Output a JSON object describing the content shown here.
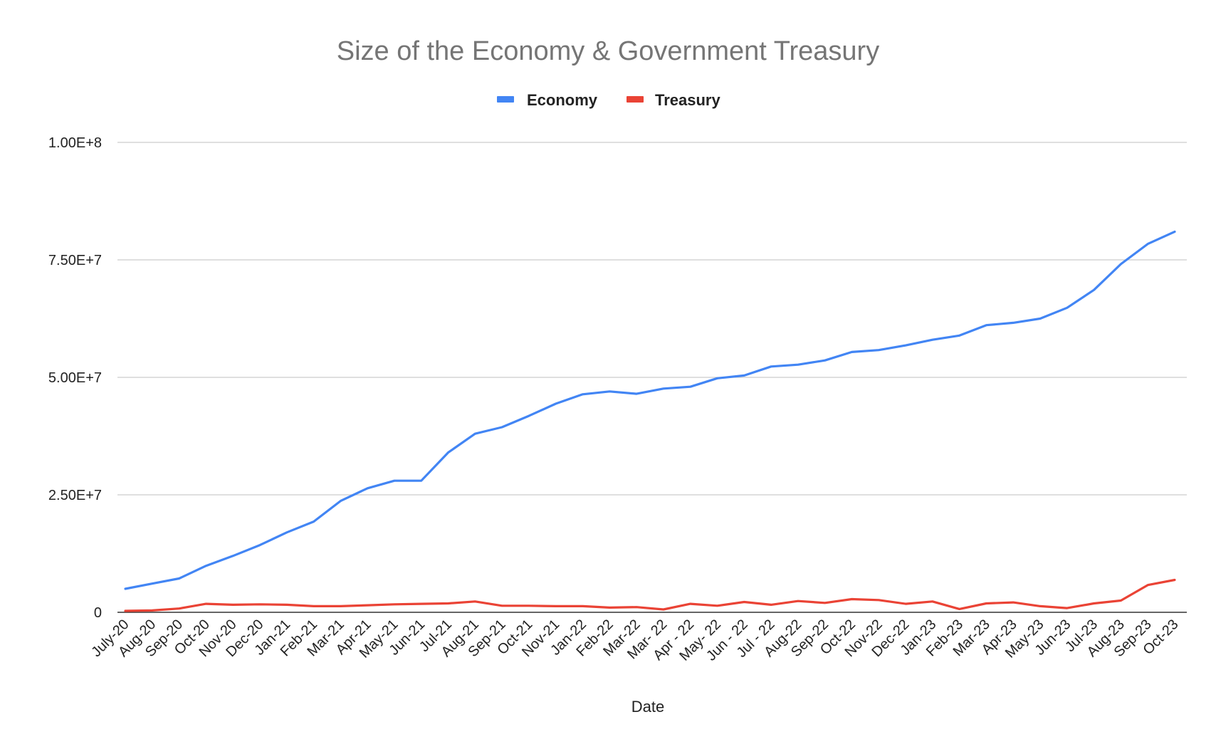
{
  "chart_data": {
    "type": "line",
    "title": "Size of the Economy & Government Treasury",
    "xlabel": "Date",
    "ylabel": "",
    "ylim": [
      0,
      100000000
    ],
    "yticks": [
      0,
      25000000,
      50000000,
      75000000,
      100000000
    ],
    "ytick_labels": [
      "0",
      "2.50E+7",
      "5.00E+7",
      "7.50E+7",
      "1.00E+8"
    ],
    "grid": true,
    "legend_position": "top-center",
    "categories": [
      "July-20",
      "Aug-20",
      "Sep-20",
      "Oct-20",
      "Nov-20",
      "Dec-20",
      "Jan-21",
      "Feb-21",
      "Mar-21",
      "Apr-21",
      "May-21",
      "Jun-21",
      "Jul-21",
      "Aug-21",
      "Sep-21",
      "Oct-21",
      "Nov-21",
      "Jan-22",
      "Feb-22",
      "Mar-22",
      "Mar- 22",
      "Apr - 22",
      "May- 22",
      "Jun - 22",
      "Jul - 22",
      "Aug-22",
      "Sep-22",
      "Oct-22",
      "Nov-22",
      "Dec-22",
      "Jan-23",
      "Feb-23",
      "Mar-23",
      "Apr-23",
      "May-23",
      "Jun-23",
      "Jul-23",
      "Aug-23",
      "Sep-23",
      "Oct-23"
    ],
    "series": [
      {
        "name": "Economy",
        "color": "#4285f4",
        "values": [
          5000000,
          6100000,
          7200000,
          9900000,
          12000000,
          14300000,
          17000000,
          19300000,
          23700000,
          26400000,
          28000000,
          28000000,
          34000000,
          38000000,
          39400000,
          41800000,
          44400000,
          46400000,
          47000000,
          46500000,
          47600000,
          48000000,
          49800000,
          50400000,
          52300000,
          52700000,
          53600000,
          55400000,
          55800000,
          56800000,
          58000000,
          58900000,
          61100000,
          61600000,
          62500000,
          64800000,
          68600000,
          74100000,
          78400000,
          81000000
        ]
      },
      {
        "name": "Treasury",
        "color": "#ea4335",
        "values": [
          300000,
          400000,
          800000,
          1800000,
          1600000,
          1700000,
          1600000,
          1300000,
          1300000,
          1500000,
          1700000,
          1800000,
          1900000,
          2300000,
          1400000,
          1400000,
          1300000,
          1300000,
          1000000,
          1100000,
          600000,
          1800000,
          1400000,
          2200000,
          1600000,
          2400000,
          2000000,
          2800000,
          2600000,
          1800000,
          2300000,
          700000,
          1900000,
          2100000,
          1300000,
          900000,
          1900000,
          2500000,
          5800000,
          6900000
        ]
      }
    ]
  }
}
